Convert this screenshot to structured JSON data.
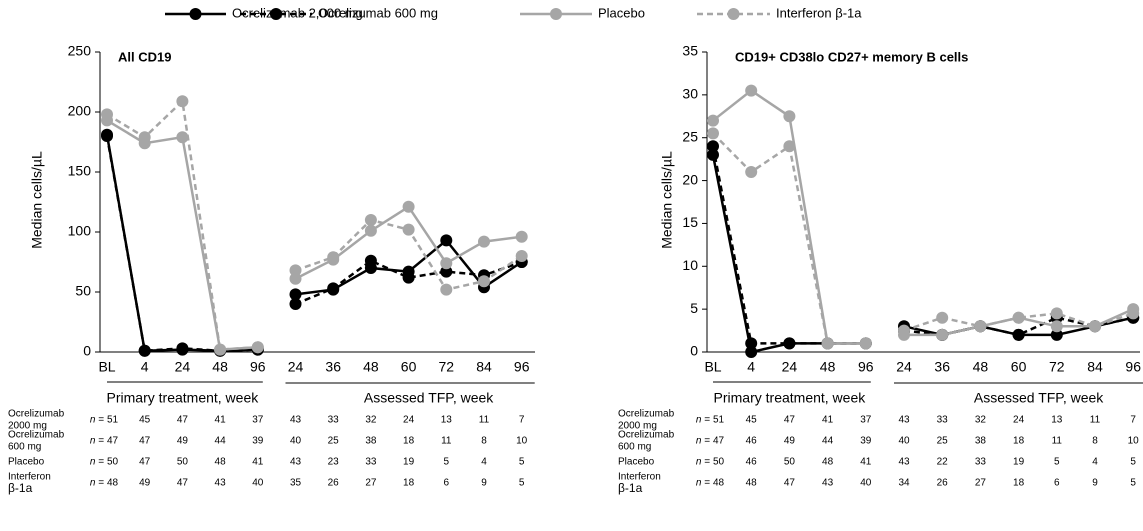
{
  "chart_data": [
    {
      "type": "line",
      "title": "All CD19",
      "y_label": "Median cells/µL",
      "ylim": [
        0,
        250
      ],
      "yticks": [
        0,
        50,
        100,
        150,
        200,
        250
      ],
      "groups": [
        {
          "label": "Primary treatment, week",
          "categories": [
            "BL",
            "4",
            "24",
            "48",
            "96"
          ]
        },
        {
          "label": "Assessed TFP, week",
          "categories": [
            "24",
            "36",
            "48",
            "60",
            "72",
            "84",
            "96"
          ]
        }
      ],
      "series": [
        {
          "name": "Ocrelizumab 2,000 mg",
          "color": "#000000",
          "dashed": false,
          "segments": [
            [
              181,
              1,
              2,
              1,
              2
            ],
            [
              48,
              52,
              70,
              67,
              93,
              54,
              75
            ]
          ]
        },
        {
          "name": "Ocrelizumab 600 mg",
          "color": "#000000",
          "dashed": true,
          "segments": [
            [
              180,
              1,
              3,
              1,
              2
            ],
            [
              40,
              53,
              76,
              62,
              67,
              64,
              75
            ]
          ]
        },
        {
          "name": "Placebo",
          "color": "#a6a6a6",
          "dashed": false,
          "segments": [
            [
              193,
              174,
              179,
              2,
              4
            ],
            [
              61,
              77,
              101,
              121,
              74,
              92,
              96
            ]
          ]
        },
        {
          "name": "Interferon β-1a",
          "color": "#a6a6a6",
          "dashed": true,
          "segments": [
            [
              198,
              179,
              209,
              2,
              4
            ],
            [
              68,
              79,
              110,
              102,
              52,
              59,
              80
            ]
          ]
        }
      ],
      "table": {
        "n_label": "n =",
        "rows": [
          {
            "label": [
              "Ocrelizumab",
              "2000 mg"
            ],
            "n": [
              51,
              45,
              47,
              41,
              37,
              43,
              33,
              32,
              24,
              13,
              11,
              7
            ]
          },
          {
            "label": [
              "Ocrelizumab",
              "600 mg"
            ],
            "n": [
              47,
              47,
              49,
              44,
              39,
              40,
              25,
              38,
              18,
              11,
              8,
              10
            ]
          },
          {
            "label": [
              "Placebo"
            ],
            "n": [
              50,
              47,
              50,
              48,
              41,
              43,
              23,
              33,
              19,
              5,
              4,
              5
            ]
          },
          {
            "label": [
              "Interferon",
              "β-1a"
            ],
            "n": [
              48,
              49,
              47,
              43,
              40,
              35,
              26,
              27,
              18,
              6,
              9,
              5
            ]
          }
        ]
      }
    },
    {
      "type": "line",
      "title": "CD19+ CD38lo CD27+ memory B cells",
      "y_label": "Median cells/µL",
      "ylim": [
        0,
        35
      ],
      "yticks": [
        0,
        5,
        10,
        15,
        20,
        25,
        30,
        35
      ],
      "groups": [
        {
          "label": "Primary treatment, week",
          "categories": [
            "BL",
            "4",
            "24",
            "48",
            "96"
          ]
        },
        {
          "label": "Assessed TFP, week",
          "categories": [
            "24",
            "36",
            "48",
            "60",
            "72",
            "84",
            "96"
          ]
        }
      ],
      "series": [
        {
          "color": "#000000",
          "dashed": false,
          "segments": [
            [
              23,
              0,
              1,
              1,
              1
            ],
            [
              3,
              2,
              3,
              2,
              2,
              3,
              4
            ]
          ]
        },
        {
          "color": "#000000",
          "dashed": true,
          "segments": [
            [
              24,
              1,
              1,
              1,
              1
            ],
            [
              2.5,
              2,
              3,
              2,
              4,
              3,
              4
            ]
          ]
        },
        {
          "color": "#a6a6a6",
          "dashed": false,
          "segments": [
            [
              27,
              30.5,
              27.5,
              1,
              1
            ],
            [
              2,
              2,
              3,
              4,
              3,
              3,
              5
            ]
          ]
        },
        {
          "color": "#a6a6a6",
          "dashed": true,
          "segments": [
            [
              25.5,
              21,
              24,
              1,
              1
            ],
            [
              2.5,
              4,
              3,
              4,
              4.5,
              3,
              4.5
            ]
          ]
        }
      ],
      "table": {
        "n_label": "n =",
        "rows": [
          {
            "label": [
              "Ocrelizumab",
              "2000 mg"
            ],
            "n": [
              51,
              45,
              47,
              41,
              37,
              43,
              33,
              32,
              24,
              13,
              11,
              7
            ]
          },
          {
            "label": [
              "Ocrelizumab",
              "600 mg"
            ],
            "n": [
              47,
              46,
              49,
              44,
              39,
              40,
              25,
              38,
              18,
              11,
              8,
              10
            ]
          },
          {
            "label": [
              "Placebo"
            ],
            "n": [
              50,
              46,
              50,
              48,
              41,
              43,
              22,
              33,
              19,
              5,
              4,
              5
            ]
          },
          {
            "label": [
              "Interferon",
              "β-1a"
            ],
            "n": [
              48,
              48,
              47,
              43,
              40,
              34,
              26,
              27,
              18,
              6,
              9,
              5
            ]
          }
        ]
      }
    }
  ]
}
